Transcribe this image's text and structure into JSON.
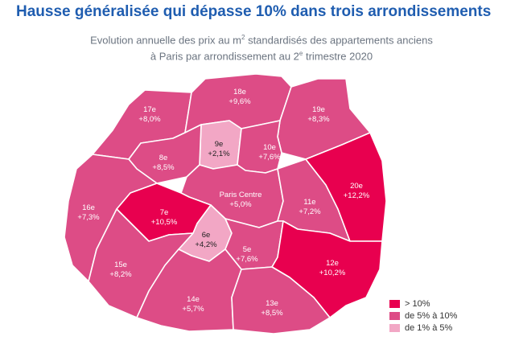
{
  "headline": "Hausse généralisée qui dépasse 10% dans trois arrondissements",
  "subtitle": {
    "line1_pre": "Evolution annuelle des prix au m",
    "line1_sup": "2",
    "line1_post": " standardisés des appartements anciens",
    "line2_pre": "à Paris par arrondissement au 2",
    "line2_sup": "e",
    "line2_post": " trimestre 2020"
  },
  "colors": {
    "high": "#e8004f",
    "mid": "#dd4c86",
    "low": "#f2a7c5",
    "border": "#ffffff",
    "headline": "#1f5db0"
  },
  "arrondissements": [
    {
      "id": "paris-centre",
      "name": "Paris Centre",
      "value": "+5,0%",
      "category": "mid"
    },
    {
      "id": "5e",
      "name": "5e",
      "value": "+7,6%",
      "category": "mid"
    },
    {
      "id": "6e",
      "name": "6e",
      "value": "+4,2%",
      "category": "low"
    },
    {
      "id": "7e",
      "name": "7e",
      "value": "+10,5%",
      "category": "high"
    },
    {
      "id": "8e",
      "name": "8e",
      "value": "+8,5%",
      "category": "mid"
    },
    {
      "id": "9e",
      "name": "9e",
      "value": "+2,1%",
      "category": "low"
    },
    {
      "id": "10e",
      "name": "10e",
      "value": "+7,6%",
      "category": "mid"
    },
    {
      "id": "11e",
      "name": "11e",
      "value": "+7,2%",
      "category": "mid"
    },
    {
      "id": "12e",
      "name": "12e",
      "value": "+10,2%",
      "category": "high"
    },
    {
      "id": "13e",
      "name": "13e",
      "value": "+8,5%",
      "category": "mid"
    },
    {
      "id": "14e",
      "name": "14e",
      "value": "+5,7%",
      "category": "mid"
    },
    {
      "id": "15e",
      "name": "15e",
      "value": "+8,2%",
      "category": "mid"
    },
    {
      "id": "16e",
      "name": "16e",
      "value": "+7,3%",
      "category": "mid"
    },
    {
      "id": "17e",
      "name": "17e",
      "value": "+8,0%",
      "category": "mid"
    },
    {
      "id": "18e",
      "name": "18e",
      "value": "+9,6%",
      "category": "mid"
    },
    {
      "id": "19e",
      "name": "19e",
      "value": "+8,3%",
      "category": "mid"
    },
    {
      "id": "20e",
      "name": "20e",
      "value": "+12,2%",
      "category": "high"
    }
  ],
  "legend": [
    {
      "label": "> 10%",
      "category": "high"
    },
    {
      "label": "de 5% à 10%",
      "category": "mid"
    },
    {
      "label": "de 1% à 5%",
      "category": "low"
    }
  ]
}
